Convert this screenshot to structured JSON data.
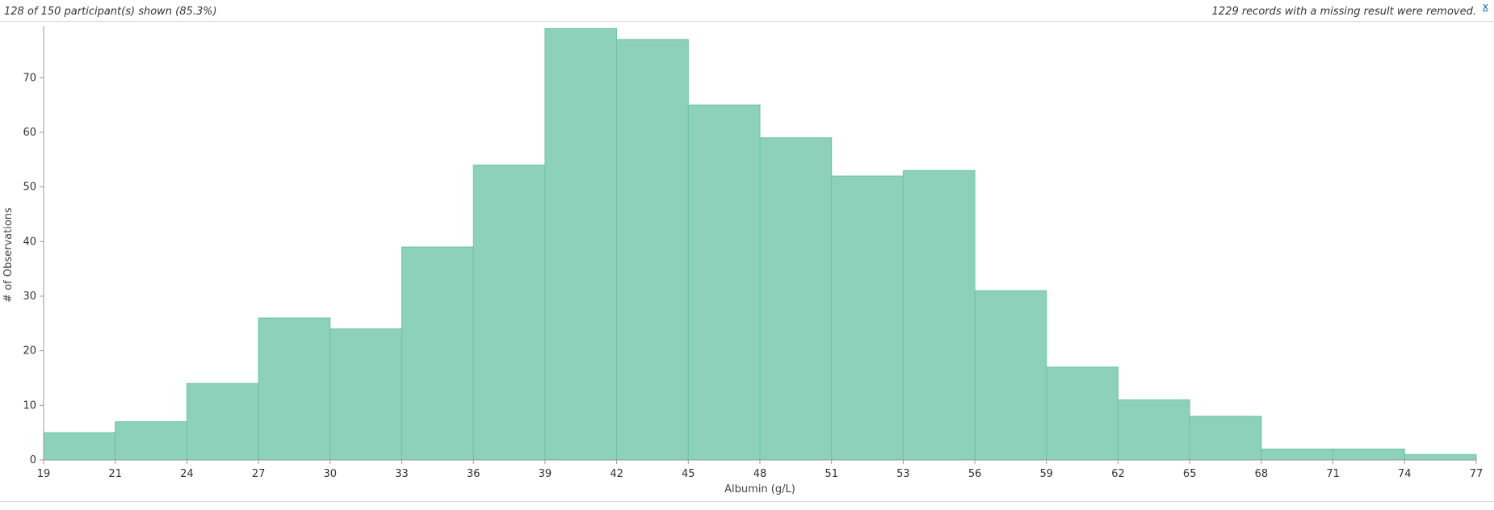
{
  "header": {
    "participants_summary": "128 of 150 participant(s) shown (85.3%)",
    "missing_summary": "1229 records with a missing result were removed.",
    "dismiss_label": "x"
  },
  "colors": {
    "bar_fill": "#8dd1ba",
    "bar_stroke": "#6cc3a4",
    "axis": "#999999"
  },
  "chart_data": {
    "type": "bar",
    "subtype": "histogram",
    "xlabel": "Albumin (g/L)",
    "ylabel": "# of Observations",
    "bin_edges": [
      19,
      21,
      24,
      27,
      30,
      33,
      36,
      39,
      42,
      45,
      48,
      51,
      53,
      56,
      59,
      62,
      65,
      68,
      71,
      74,
      77
    ],
    "values": [
      5,
      7,
      14,
      26,
      24,
      39,
      54,
      79,
      77,
      65,
      59,
      52,
      53,
      31,
      17,
      11,
      8,
      2,
      2,
      1
    ],
    "yticks": [
      0,
      10,
      20,
      30,
      40,
      50,
      60,
      70
    ],
    "ylim": [
      0,
      79.5
    ],
    "grid": false,
    "legend": "none"
  }
}
